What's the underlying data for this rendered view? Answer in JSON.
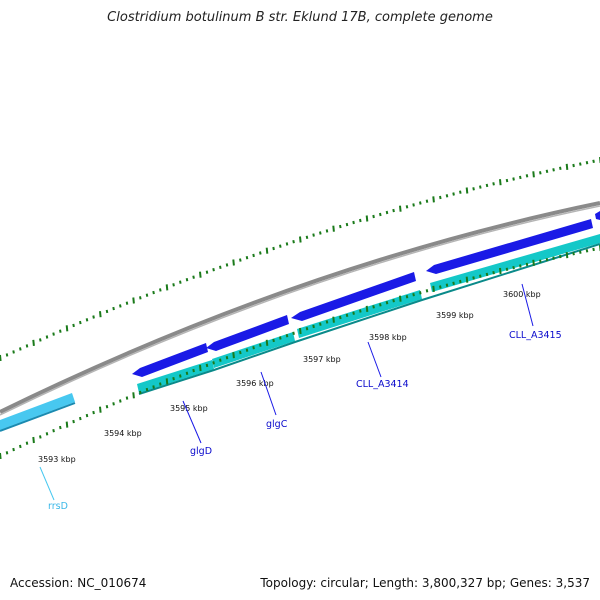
{
  "header": {
    "title": "Clostridium botulinum B str. Eklund 17B, complete genome"
  },
  "footer": {
    "accession": "Accession: NC_010674",
    "summary": "Topology: circular; Length: 3,800,327 bp; Genes: 3,537"
  },
  "colors": {
    "backbone": "#8a8a8a",
    "forward_cds": "#1a1ae6",
    "reverse_cds": "#14c8c8",
    "rrna": "#48c8f0",
    "tick": "#1a7a1a",
    "label_forward": "#0a0acc",
    "label_rrna": "#3ab8e8"
  },
  "ticks": [
    {
      "label": "3593 kbp"
    },
    {
      "label": "3594 kbp"
    },
    {
      "label": "3595 kbp"
    },
    {
      "label": "3596 kbp"
    },
    {
      "label": "3597 kbp"
    },
    {
      "label": "3598 kbp"
    },
    {
      "label": "3599 kbp"
    },
    {
      "label": "3600 kbp"
    }
  ],
  "genes": [
    {
      "name": "rrsD",
      "type": "rRNA"
    },
    {
      "name": "glgD",
      "type": "CDS"
    },
    {
      "name": "glgC",
      "type": "CDS"
    },
    {
      "name": "CLL_A3414",
      "type": "CDS"
    },
    {
      "name": "CLL_A3415",
      "type": "CDS"
    }
  ]
}
